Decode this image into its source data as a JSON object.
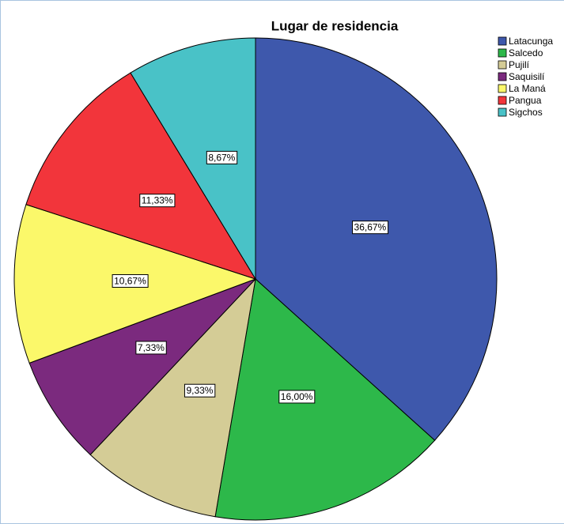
{
  "chart_data": {
    "type": "pie",
    "title": "Lugar de residencia",
    "categories": [
      "Latacunga",
      "Salcedo",
      "Pujilí",
      "Saquisilí",
      "La Maná",
      "Pangua",
      "Sigchos"
    ],
    "values": [
      36.67,
      16.0,
      9.33,
      7.33,
      10.67,
      11.33,
      8.67
    ],
    "value_labels": [
      "36,67%",
      "16,00%",
      "9,33%",
      "7,33%",
      "10,67%",
      "11,33%",
      "8,67%"
    ],
    "colors": [
      "#3e58ac",
      "#2db84a",
      "#d4cc96",
      "#7b2a7e",
      "#fbf86a",
      "#f2353b",
      "#49c2c7"
    ],
    "legend": "top-right"
  }
}
